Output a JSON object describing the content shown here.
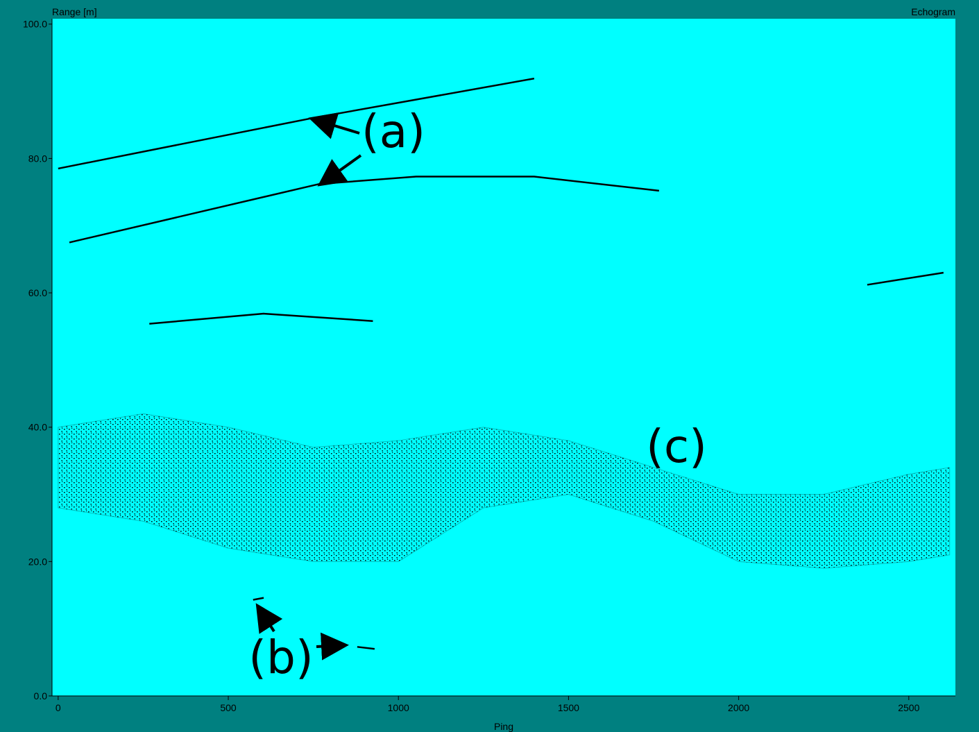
{
  "chart_data": {
    "type": "echogram",
    "title": "Echogram",
    "y_label": "Range [m]",
    "x_label": "Ping",
    "background": "#00ffff",
    "frame_color": "#008080",
    "xlim": [
      -18,
      2637
    ],
    "ylim": [
      0,
      100.8
    ],
    "xticks": [
      0,
      500,
      1000,
      1500,
      2000,
      2500
    ],
    "yticks": [
      {
        "value": 0,
        "label": "0.0"
      },
      {
        "value": 20,
        "label": "20.0"
      },
      {
        "value": 40,
        "label": "40.0"
      },
      {
        "value": 60,
        "label": "60.0"
      },
      {
        "value": 80,
        "label": "80.0"
      },
      {
        "value": 100,
        "label": "100.0"
      }
    ],
    "series": [
      {
        "color": "#000000",
        "x": [
          0,
          746,
          1399
        ],
        "values": [
          78.5,
          86.0,
          91.9
        ]
      },
      {
        "color": "#000000",
        "x": [
          33,
          767,
          1052,
          1399,
          1766
        ],
        "values": [
          67.5,
          76.2,
          77.3,
          77.3,
          75.2
        ]
      },
      {
        "color": "#000000",
        "x": [
          268,
          604,
          925
        ],
        "values": [
          55.4,
          56.9,
          55.8
        ]
      },
      {
        "color": "#000000",
        "x": [
          2378,
          2602
        ],
        "values": [
          61.2,
          63.0
        ]
      },
      {
        "color": "#000000",
        "x": [
          573,
          604
        ],
        "values": [
          14.3,
          14.6
        ]
      },
      {
        "color": "#000000",
        "x": [
          879,
          930
        ],
        "values": [
          7.3,
          7.0
        ]
      }
    ],
    "layer": {
      "color": "#000000",
      "x": [
        0,
        250,
        500,
        750,
        1000,
        1250,
        1500,
        1750,
        2000,
        2250,
        2500,
        2620
      ],
      "upper": [
        40,
        42,
        40,
        37,
        38,
        40,
        38,
        34,
        30,
        30,
        33,
        34
      ],
      "lower": [
        28,
        26,
        22,
        20,
        20,
        28,
        30,
        26,
        20,
        19,
        20,
        21
      ]
    },
    "annotations": [
      {
        "text": "(a)"
      },
      {
        "text": "(b)"
      },
      {
        "text": "(c)"
      }
    ]
  }
}
